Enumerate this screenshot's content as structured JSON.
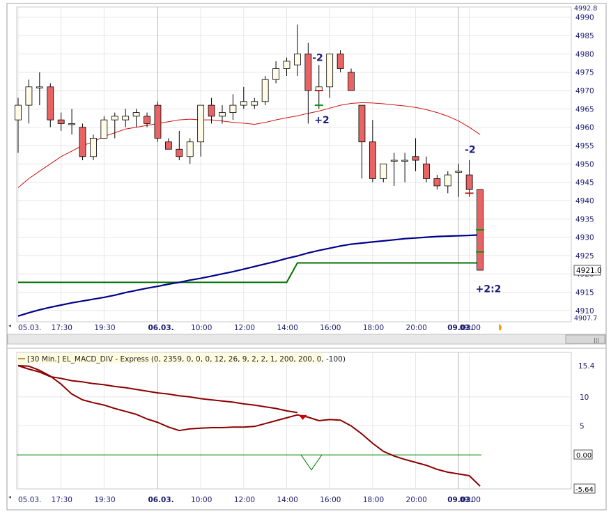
{
  "chart_data": [
    {
      "type": "candlestick",
      "panel": "price",
      "ylim": [
        4907.7,
        4992.8
      ],
      "y_ticks": [
        4910,
        4915,
        4920,
        4925,
        4930,
        4935,
        4940,
        4945,
        4950,
        4955,
        4960,
        4965,
        4970,
        4975,
        4980,
        4985,
        4990
      ],
      "y_top_label": "4992.8",
      "y_bottom_label": "4907.7",
      "last_price": "4921.0",
      "x_labels": [
        {
          "text": "05.03.",
          "bold": false,
          "idx": 0
        },
        {
          "text": "17:30",
          "bold": false,
          "idx": 4
        },
        {
          "text": "19:30",
          "bold": false,
          "idx": 8
        },
        {
          "text": "06.03.",
          "bold": true,
          "idx": 13
        },
        {
          "text": "10:00",
          "bold": false,
          "idx": 17
        },
        {
          "text": "12:00",
          "bold": false,
          "idx": 21
        },
        {
          "text": "14:00",
          "bold": false,
          "idx": 25
        },
        {
          "text": "16:00",
          "bold": false,
          "idx": 29
        },
        {
          "text": "18:00",
          "bold": false,
          "idx": 33
        },
        {
          "text": "20:00",
          "bold": false,
          "idx": 37
        },
        {
          "text": "09.03.",
          "bold": true,
          "idx": 41
        },
        {
          "text": "09:00",
          "bold": false,
          "idx": 42
        }
      ],
      "candles": [
        [
          4962,
          4968,
          4953,
          4966
        ],
        [
          4966,
          4973,
          4961,
          4971
        ],
        [
          4971,
          4975,
          4966,
          4971
        ],
        [
          4971,
          4972,
          4960,
          4962
        ],
        [
          4962,
          4964,
          4959,
          4961
        ],
        [
          4961,
          4965,
          4958,
          4961
        ],
        [
          4960,
          4961,
          4951,
          4952
        ],
        [
          4952,
          4958,
          4951,
          4957
        ],
        [
          4957,
          4963,
          4957,
          4962
        ],
        [
          4962,
          4964,
          4957,
          4963
        ],
        [
          4962,
          4965,
          4960,
          4963
        ],
        [
          4963,
          4965,
          4960,
          4964
        ],
        [
          4963,
          4964,
          4960,
          4961
        ],
        [
          4966,
          4967,
          4956,
          4957
        ],
        [
          4956,
          4957,
          4954,
          4954
        ],
        [
          4954,
          4959,
          4951,
          4952
        ],
        [
          4952,
          4957,
          4950,
          4956
        ],
        [
          4956,
          4966,
          4952,
          4966
        ],
        [
          4966,
          4968,
          4961,
          4963
        ],
        [
          4963,
          4966,
          4961,
          4964
        ],
        [
          4964,
          4969,
          4962,
          4966
        ],
        [
          4966,
          4971,
          4965,
          4967
        ],
        [
          4966,
          4968,
          4965,
          4967
        ],
        [
          4967,
          4974,
          4966,
          4973
        ],
        [
          4973,
          4978,
          4972,
          4976
        ],
        [
          4976,
          4979,
          4974,
          4978
        ],
        [
          4977,
          4988,
          4974,
          4980
        ],
        [
          4980,
          4983,
          4961,
          4970
        ],
        [
          4970,
          4977,
          4965,
          4971
        ],
        [
          4971,
          4980,
          4968,
          4980
        ],
        [
          4980,
          4981,
          4975,
          4976
        ],
        [
          4975,
          4976,
          4970,
          4970
        ],
        [
          4966,
          4966,
          4946,
          4956
        ],
        [
          4956,
          4962,
          4945,
          4946
        ],
        [
          4946,
          4950,
          4945,
          4950
        ],
        [
          4951,
          4953,
          4944,
          4951
        ],
        [
          4951,
          4953,
          4945,
          4951
        ],
        [
          4952,
          4957,
          4948,
          4951
        ],
        [
          4950,
          4952,
          4945,
          4946
        ],
        [
          4946,
          4947,
          4943,
          4944
        ],
        [
          4944,
          4948,
          4942,
          4947
        ],
        [
          4948,
          4950,
          4941,
          4948
        ],
        [
          4947,
          4951,
          4941,
          4943
        ],
        [
          4943,
          4943,
          4921,
          4921
        ]
      ],
      "ema_line": [
        4943.5,
        4946,
        4948,
        4950,
        4952,
        4953.5,
        4955,
        4956,
        4957.5,
        4958.5,
        4959.5,
        4960,
        4960.5,
        4961,
        4961.5,
        4962,
        4962.2,
        4962,
        4962,
        4961.7,
        4961.3,
        4961.1,
        4960.8,
        4961.3,
        4962,
        4962.6,
        4963.1,
        4963.8,
        4964.4,
        4965.2,
        4966,
        4966.5,
        4966.7,
        4966.6,
        4966.4,
        4966.1,
        4965.8,
        4965.4,
        4964.8,
        4964,
        4963,
        4961.7,
        4960,
        4958
      ],
      "sma_line": [
        4908.5,
        4909.4,
        4910.2,
        4910.9,
        4911.5,
        4912.1,
        4912.6,
        4913.1,
        4913.6,
        4914.2,
        4914.9,
        4915.5,
        4916.1,
        4916.6,
        4917.2,
        4917.7,
        4918.3,
        4918.8,
        4919.4,
        4920,
        4920.6,
        4921.3,
        4922,
        4922.7,
        4923.4,
        4924.2,
        4924.9,
        4925.7,
        4926.4,
        4927,
        4927.6,
        4928.1,
        4928.4,
        4928.7,
        4929,
        4929.3,
        4929.6,
        4929.8,
        4930,
        4930.2,
        4930.3,
        4930.4,
        4930.5,
        4930.6
      ],
      "green_line": [
        4917.7,
        4917.7,
        4917.7,
        4917.7,
        4917.7,
        4917.7,
        4917.7,
        4917.7,
        4917.7,
        4917.7,
        4917.7,
        4917.7,
        4917.7,
        4917.7,
        4917.7,
        4917.7,
        4917.7,
        4917.7,
        4917.7,
        4917.7,
        4917.7,
        4917.7,
        4917.7,
        4917.7,
        4917.7,
        4917.7,
        4923,
        4923,
        4923,
        4923,
        4923,
        4923,
        4923,
        4923,
        4923,
        4923,
        4923,
        4923,
        4923,
        4923,
        4923,
        4923,
        4923,
        4923
      ],
      "trade_markers": [
        {
          "text": "-2",
          "idx": 27.9,
          "y": 4979,
          "tick_y": 4970
        },
        {
          "text": "+2",
          "idx": 28.1,
          "y": 4962,
          "tick_y": 4966,
          "tick_color": "green"
        },
        {
          "text": "-2",
          "idx": 42.1,
          "y": 4954,
          "tick_y": 4942
        },
        {
          "text": "+2:2",
          "idx": 43.1,
          "y": 4916,
          "tick_y": 4926,
          "tick_color": "green"
        }
      ],
      "extra_tick": {
        "idx": 43,
        "y": 4932,
        "color": "green"
      }
    },
    {
      "type": "line",
      "panel": "indicator",
      "title": "[30 Min.] EL_MACD_DIV - Express  (0, 2359, 0, 0, 0, 12, 26, 9, 2, 2, 1, 200, 200, 0, -100)",
      "ylim": [
        -5.64,
        15.4
      ],
      "y_ticks": [
        5,
        10
      ],
      "y_top_label": "15.4",
      "y_bottom_label": "-5.64",
      "zero_label": "0.00",
      "x_labels_same_as_price": true,
      "series": [
        {
          "color": "#8b0000",
          "values": [
            15.4,
            15.3,
            14.6,
            13.6,
            12.2,
            10.5,
            9.5,
            9.0,
            8.6,
            8.0,
            7.5,
            7.0,
            6.2,
            5.6,
            4.8,
            4.2,
            4.5,
            4.6,
            4.7,
            4.7,
            4.8,
            4.8,
            4.9,
            5.4,
            5.9,
            6.4,
            6.9,
            6.5,
            5.9,
            6.1,
            6.0,
            5.0,
            3.6,
            2.0,
            0.6,
            -0.2,
            -0.8,
            -1.3,
            -1.8,
            -2.5,
            -3.0,
            -3.3,
            -3.6,
            -5.4
          ]
        },
        {
          "color": "#8b0000",
          "values": [
            15.4,
            14.8,
            14.3,
            13.5,
            13.2,
            12.8,
            12.6,
            12.3,
            12.1,
            11.8,
            11.6,
            11.3,
            11.0,
            10.7,
            10.5,
            10.2,
            10.0,
            9.7,
            9.5,
            9.3,
            9.1,
            8.8,
            8.6,
            8.3,
            8.0,
            7.6,
            7.3
          ]
        }
      ],
      "signal_line": {
        "color": "#008000",
        "value": 0.0
      },
      "divergence_markers": [
        {
          "type": "down-triangle",
          "idx": 26.5,
          "value": 6.4,
          "color": "#cc0000"
        },
        {
          "type": "v-shape",
          "idx": 27.3,
          "value": -2.6,
          "color": "#008000"
        }
      ]
    }
  ]
}
